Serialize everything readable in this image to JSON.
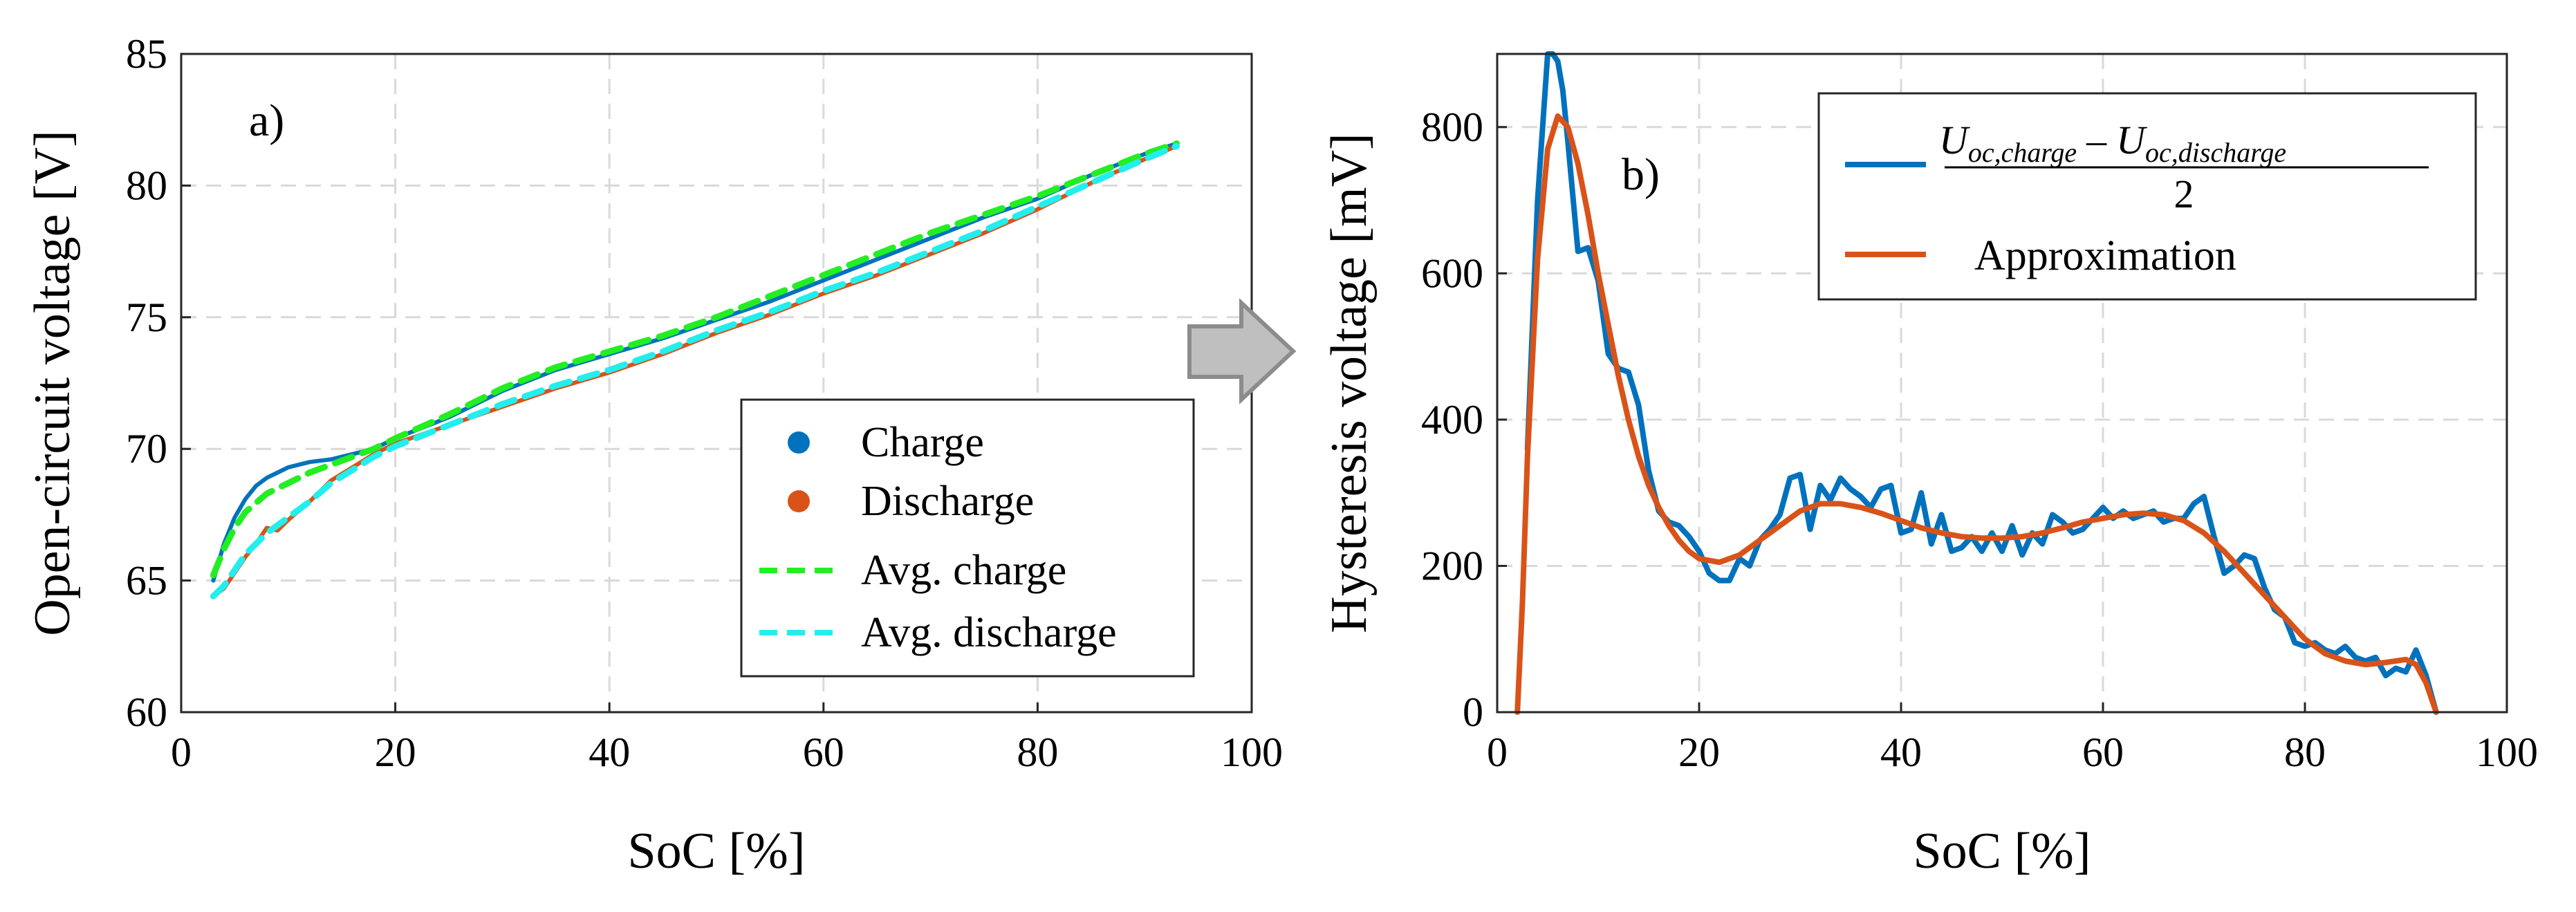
{
  "chart_data": [
    {
      "type": "line",
      "panel_label": "a)",
      "xlabel": "SoC [%]",
      "ylabel": "Open-circuit voltage [V]",
      "xlim": [
        0,
        100
      ],
      "ylim": [
        60,
        85
      ],
      "xticks": [
        0,
        20,
        40,
        60,
        80,
        100
      ],
      "yticks": [
        60,
        65,
        70,
        75,
        80,
        85
      ],
      "xtick_labels": [
        "0",
        "20",
        "40",
        "60",
        "80",
        "100"
      ],
      "ytick_labels": [
        "60",
        "65",
        "70",
        "75",
        "80",
        "85"
      ],
      "grid": true,
      "legend_position": "lower-right",
      "colors": {
        "charge": "#0072BD",
        "discharge": "#D95319",
        "avg_charge": "#22EE22",
        "avg_discharge": "#22EEEE"
      },
      "series": [
        {
          "name": "Charge",
          "style": "dots",
          "x": [
            3,
            4,
            5,
            6,
            7,
            8,
            9,
            10,
            12,
            14,
            16,
            18,
            20,
            25,
            30,
            35,
            40,
            45,
            50,
            55,
            60,
            65,
            70,
            75,
            80,
            85,
            90,
            93
          ],
          "y": [
            65.0,
            66.4,
            67.4,
            68.1,
            68.6,
            68.9,
            69.1,
            69.3,
            69.5,
            69.6,
            69.8,
            70.0,
            70.4,
            71.2,
            72.2,
            73.0,
            73.6,
            74.2,
            74.9,
            75.6,
            76.4,
            77.2,
            78.0,
            78.8,
            79.5,
            80.4,
            81.2,
            81.6
          ]
        },
        {
          "name": "Discharge",
          "style": "dots",
          "x": [
            3,
            4,
            5,
            6,
            7,
            8,
            9,
            10,
            12,
            14,
            16,
            18,
            20,
            25,
            30,
            35,
            40,
            45,
            50,
            55,
            60,
            65,
            70,
            75,
            80,
            85,
            90,
            93
          ],
          "y": [
            64.4,
            64.7,
            65.3,
            65.9,
            66.4,
            67.0,
            66.9,
            67.3,
            68.0,
            68.8,
            69.3,
            69.8,
            70.2,
            70.9,
            71.6,
            72.3,
            72.9,
            73.6,
            74.4,
            75.1,
            75.9,
            76.6,
            77.4,
            78.2,
            79.1,
            80.1,
            81.0,
            81.5
          ]
        },
        {
          "name": "Avg. charge",
          "style": "dashed",
          "x": [
            3,
            4,
            5,
            6,
            8,
            10,
            12,
            14,
            16,
            18,
            20,
            25,
            30,
            35,
            40,
            45,
            50,
            55,
            60,
            65,
            70,
            75,
            80,
            85,
            90,
            93
          ],
          "y": [
            65.2,
            66.2,
            67.0,
            67.6,
            68.3,
            68.7,
            69.1,
            69.4,
            69.7,
            70.0,
            70.4,
            71.3,
            72.3,
            73.1,
            73.7,
            74.3,
            75.0,
            75.8,
            76.6,
            77.4,
            78.2,
            78.9,
            79.6,
            80.4,
            81.2,
            81.6
          ]
        },
        {
          "name": "Avg. discharge",
          "style": "dashed",
          "x": [
            3,
            4,
            5,
            6,
            8,
            10,
            12,
            14,
            16,
            18,
            20,
            25,
            30,
            35,
            40,
            45,
            50,
            55,
            60,
            65,
            70,
            75,
            80,
            85,
            90,
            93
          ],
          "y": [
            64.4,
            64.8,
            65.4,
            66.0,
            66.8,
            67.4,
            68.0,
            68.7,
            69.2,
            69.7,
            70.1,
            70.9,
            71.7,
            72.4,
            73.0,
            73.7,
            74.5,
            75.2,
            76.0,
            76.7,
            77.5,
            78.3,
            79.2,
            80.1,
            81.0,
            81.5
          ]
        }
      ],
      "legend": [
        "Charge",
        "Discharge",
        "Avg. charge",
        "Avg. discharge"
      ]
    },
    {
      "type": "line",
      "panel_label": "b)",
      "xlabel": "SoC [%]",
      "ylabel": "Hysteresis voltage [mV]",
      "xlim": [
        0,
        100
      ],
      "ylim": [
        0,
        900
      ],
      "xticks": [
        0,
        20,
        40,
        60,
        80,
        100
      ],
      "yticks": [
        0,
        200,
        400,
        600,
        800
      ],
      "xtick_labels": [
        "0",
        "20",
        "40",
        "60",
        "80",
        "100"
      ],
      "ytick_labels": [
        "0",
        "200",
        "400",
        "600",
        "800"
      ],
      "grid": true,
      "legend_position": "top-right",
      "colors": {
        "hysteresis": "#0072BD",
        "approximation": "#D95319"
      },
      "series": [
        {
          "name": "(U_oc,charge - U_oc,discharge)/2",
          "x": [
            3,
            4,
            5,
            5.5,
            6,
            6.5,
            7,
            8,
            9,
            10,
            11,
            12,
            13,
            14,
            15,
            16,
            17,
            18,
            19,
            20,
            21,
            22,
            23,
            24,
            25,
            26,
            27,
            28,
            29,
            30,
            31,
            32,
            33,
            34,
            35,
            36,
            37,
            38,
            39,
            40,
            41,
            42,
            43,
            44,
            45,
            46,
            47,
            48,
            49,
            50,
            51,
            52,
            53,
            54,
            55,
            56,
            57,
            58,
            59,
            60,
            61,
            62,
            63,
            64,
            65,
            66,
            67,
            68,
            69,
            70,
            71,
            72,
            73,
            74,
            75,
            76,
            77,
            78,
            79,
            80,
            81,
            82,
            83,
            84,
            85,
            86,
            87,
            88,
            89,
            90,
            91,
            92,
            93
          ],
          "y": [
            360,
            700,
            900,
            900,
            890,
            850,
            780,
            630,
            635,
            590,
            490,
            470,
            465,
            420,
            330,
            275,
            260,
            255,
            240,
            220,
            190,
            180,
            180,
            210,
            200,
            235,
            250,
            270,
            320,
            325,
            250,
            310,
            290,
            320,
            305,
            295,
            280,
            305,
            310,
            245,
            250,
            300,
            230,
            270,
            220,
            225,
            240,
            220,
            245,
            220,
            255,
            215,
            245,
            230,
            270,
            260,
            245,
            250,
            265,
            280,
            265,
            275,
            265,
            270,
            275,
            260,
            265,
            265,
            285,
            295,
            240,
            190,
            200,
            215,
            210,
            170,
            140,
            130,
            95,
            90,
            95,
            85,
            80,
            90,
            75,
            70,
            75,
            50,
            60,
            55,
            85,
            50,
            0
          ]
        },
        {
          "name": "Approximation",
          "x": [
            2.0,
            2.5,
            3,
            4,
            5,
            6,
            7,
            8,
            9,
            10,
            11,
            12,
            13,
            14,
            15,
            16,
            17,
            18,
            19,
            20,
            22,
            24,
            26,
            28,
            30,
            32,
            34,
            36,
            38,
            40,
            42,
            44,
            46,
            48,
            50,
            52,
            54,
            56,
            58,
            60,
            62,
            64,
            66,
            68,
            70,
            72,
            74,
            76,
            78,
            80,
            82,
            84,
            86,
            88,
            90,
            91,
            92,
            93
          ],
          "y": [
            0,
            150,
            350,
            620,
            770,
            815,
            800,
            750,
            680,
            600,
            530,
            460,
            400,
            350,
            310,
            280,
            255,
            235,
            220,
            210,
            205,
            215,
            235,
            255,
            275,
            285,
            285,
            280,
            272,
            262,
            252,
            245,
            240,
            238,
            238,
            240,
            245,
            252,
            260,
            265,
            270,
            272,
            270,
            262,
            245,
            220,
            190,
            160,
            130,
            100,
            80,
            70,
            65,
            68,
            72,
            65,
            40,
            0
          ]
        }
      ],
      "legend": {
        "numerator": "U",
        "numerator_sub": "oc,charge",
        "minus": "–",
        "numerator_2": "U",
        "numerator_2_sub": "oc,discharge",
        "denominator": "2",
        "second": "Approximation"
      }
    }
  ]
}
